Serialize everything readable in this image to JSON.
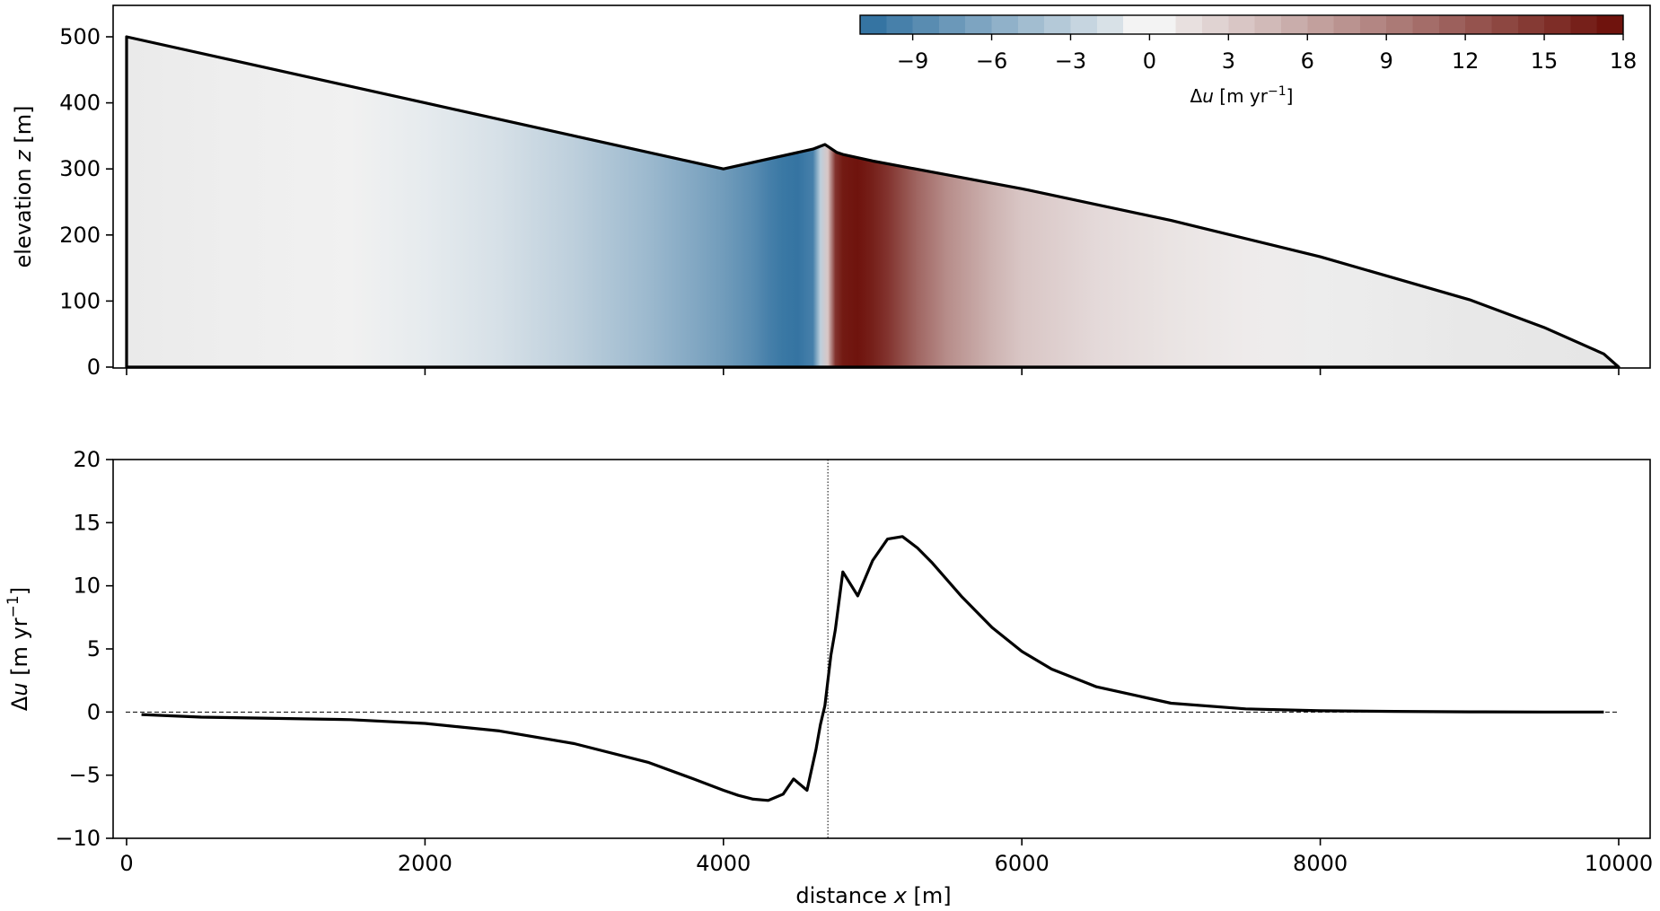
{
  "chart_data": [
    {
      "type": "heatmap",
      "title": "",
      "xlabel": "",
      "ylabel_prefix": "elevation ",
      "ylabel_var": "z",
      "ylabel_unit": " [m]",
      "xlim": [
        0,
        10000
      ],
      "ylim": [
        0,
        500
      ],
      "x_ticks": [
        0,
        2000,
        4000,
        6000,
        8000,
        10000
      ],
      "y_ticks": [
        0,
        100,
        200,
        300,
        400,
        500
      ],
      "y_tick_labels": [
        "0",
        "100",
        "200",
        "300",
        "400",
        "500"
      ],
      "surface_outline": {
        "x": [
          0,
          1000,
          2000,
          3000,
          4000,
          4600,
          4680,
          4760,
          4800,
          5000,
          6000,
          7000,
          8000,
          9000,
          9500,
          9800,
          9900,
          10000
        ],
        "z": [
          500,
          450,
          400,
          350,
          300,
          330,
          337,
          325,
          322,
          312,
          270,
          222,
          167,
          102,
          60,
          30,
          20,
          0
        ]
      },
      "field_description_profile": {
        "x": [
          0,
          500,
          1000,
          1500,
          2000,
          2500,
          3000,
          3500,
          3800,
          4000,
          4200,
          4300,
          4400,
          4500,
          4600,
          4650,
          4700,
          4750,
          4800,
          4900,
          5000,
          5100,
          5200,
          5300,
          5500,
          5800,
          6000,
          6500,
          7000,
          7500,
          8000,
          9000,
          10000
        ],
        "du_midcolumn": [
          -0.2,
          -0.3,
          -0.4,
          -0.5,
          -0.7,
          -1.6,
          -3.0,
          -4.8,
          -6.2,
          -7.2,
          -8.5,
          -9.5,
          -10.2,
          -10.5,
          -9.5,
          -3.0,
          3.5,
          15.0,
          17.0,
          17.5,
          16.5,
          15.0,
          13.0,
          11.0,
          8.0,
          5.0,
          3.5,
          2.0,
          1.2,
          0.6,
          0.3,
          0.1,
          0.0
        ]
      },
      "colorbar": {
        "label_prefix": "Δ",
        "label_var": "u",
        "label_unit": " [m yr",
        "label_sup": "−1",
        "label_close": "]",
        "range": [
          -11,
          18
        ],
        "ticks": [
          -9,
          -6,
          -3,
          0,
          3,
          6,
          9,
          12,
          15,
          18
        ],
        "tick_labels": [
          "−9",
          "−6",
          "−3",
          "0",
          "3",
          "6",
          "9",
          "12",
          "15",
          "18"
        ],
        "colors_negative": "#2c6e9e",
        "colors_positive": "#6b0d06",
        "color_zero": "#f3f3f3",
        "position": "top-right"
      }
    },
    {
      "type": "line",
      "title": "",
      "xlabel_prefix": "distance ",
      "xlabel_var": "x",
      "xlabel_unit": " [m]",
      "ylabel_prefix": "Δ",
      "ylabel_var": "u",
      "ylabel_unit": " [m yr",
      "ylabel_sup": "−1",
      "ylabel_close": "]",
      "xlim": [
        0,
        10000
      ],
      "ylim": [
        -10,
        20
      ],
      "x_ticks": [
        0,
        2000,
        4000,
        6000,
        8000,
        10000
      ],
      "x_tick_labels": [
        "0",
        "2000",
        "4000",
        "6000",
        "8000",
        "10000"
      ],
      "y_ticks": [
        -10,
        -5,
        0,
        5,
        10,
        15,
        20
      ],
      "y_tick_labels": [
        "−10",
        "−5",
        "0",
        "5",
        "10",
        "15",
        "20"
      ],
      "zero_line": 0,
      "vline_x": 4700,
      "series": [
        {
          "x": [
            100,
            500,
            1000,
            1500,
            2000,
            2500,
            3000,
            3500,
            3800,
            4000,
            4100,
            4200,
            4300,
            4400,
            4470,
            4560,
            4620,
            4650,
            4680,
            4720,
            4750,
            4800,
            4900,
            5000,
            5100,
            5200,
            5300,
            5400,
            5600,
            5800,
            6000,
            6200,
            6500,
            7000,
            7500,
            8000,
            8500,
            9000,
            9500,
            9900
          ],
          "y": [
            -0.2,
            -0.4,
            -0.5,
            -0.6,
            -0.9,
            -1.5,
            -2.5,
            -4.0,
            -5.3,
            -6.2,
            -6.6,
            -6.9,
            -7.0,
            -6.5,
            -5.3,
            -6.2,
            -3.0,
            -1.0,
            0.5,
            4.5,
            6.5,
            11.1,
            9.2,
            12.0,
            13.7,
            13.9,
            13.0,
            11.8,
            9.1,
            6.7,
            4.8,
            3.4,
            2.0,
            0.7,
            0.25,
            0.1,
            0.05,
            0.02,
            0.0,
            0.0
          ],
          "color": "#000000"
        }
      ]
    }
  ]
}
